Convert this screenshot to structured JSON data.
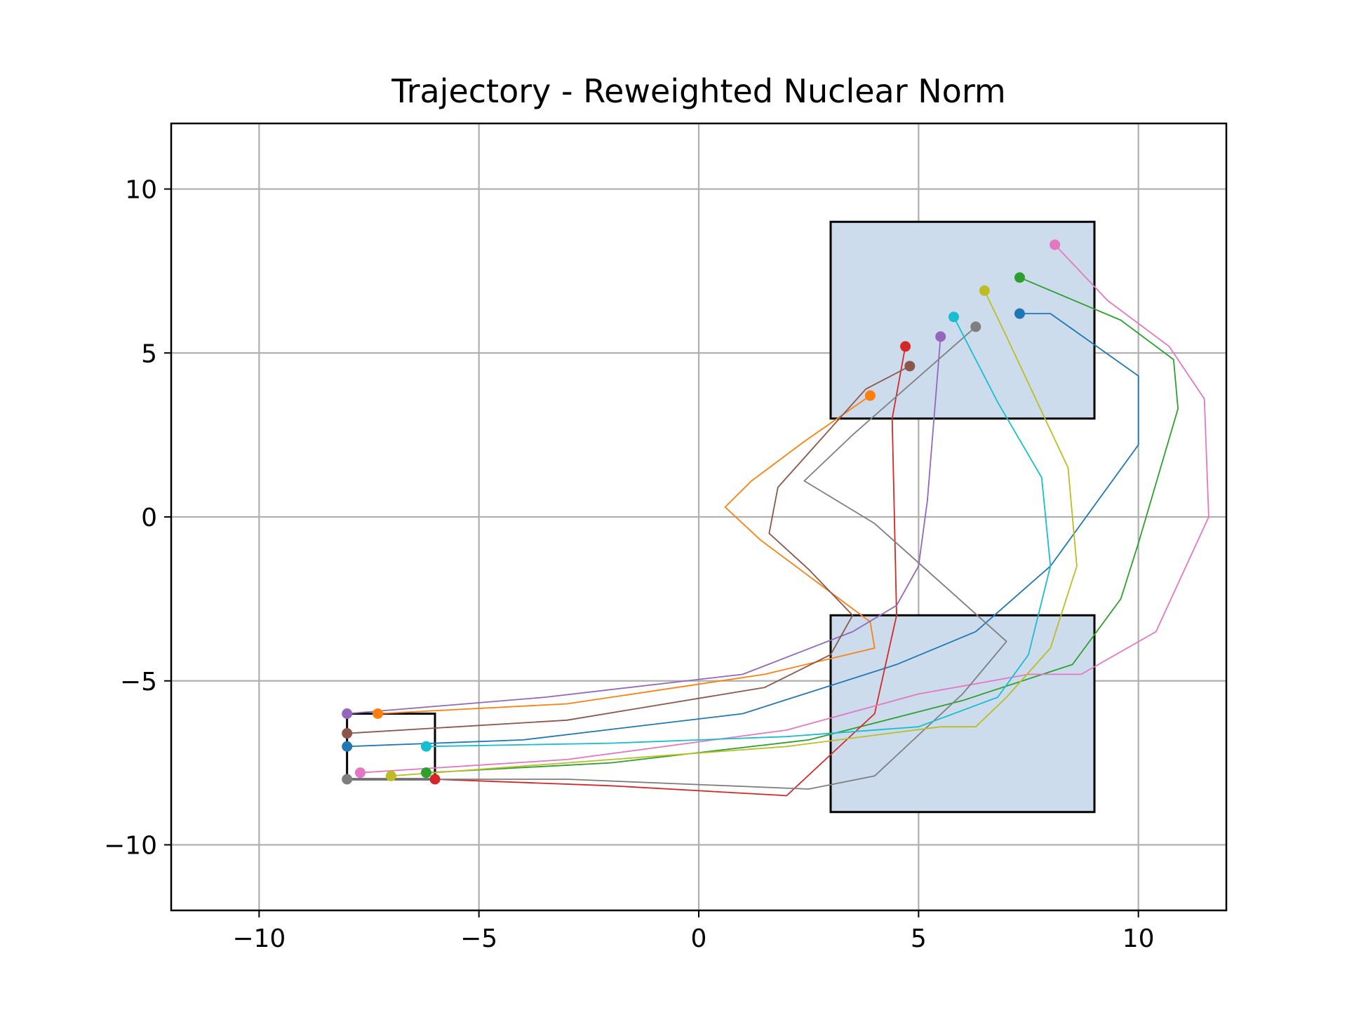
{
  "chart_data": {
    "type": "line",
    "title": "Trajectory - Reweighted Nuclear Norm",
    "xlabel": "",
    "ylabel": "",
    "xlim": [
      -12,
      12
    ],
    "ylim": [
      -12,
      12
    ],
    "xticks": [
      -10,
      -5,
      0,
      5,
      10
    ],
    "yticks": [
      -10,
      -5,
      0,
      5,
      10
    ],
    "xtick_labels": [
      "−10",
      "−5",
      "0",
      "5",
      "10"
    ],
    "ytick_labels": [
      "−10",
      "−5",
      "0",
      "5",
      "10"
    ],
    "grid": true,
    "legend": "none",
    "regions": [
      {
        "name": "start region",
        "x": [
          -8,
          -6
        ],
        "y": [
          -8,
          -6
        ],
        "fill": "none",
        "edge": "#000000"
      },
      {
        "name": "obstacle / waypoint box lower",
        "x": [
          3,
          9
        ],
        "y": [
          -9,
          -3
        ],
        "fill": "#ccdcec",
        "edge": "#000000"
      },
      {
        "name": "goal region",
        "x": [
          3,
          9
        ],
        "y": [
          3,
          9
        ],
        "fill": "#ccdcec",
        "edge": "#000000"
      }
    ],
    "colors": [
      "#1f77b4",
      "#ff7f0e",
      "#2ca02c",
      "#d62728",
      "#9467bd",
      "#8c564b",
      "#e377c2",
      "#7f7f7f",
      "#bcbd22",
      "#17becf"
    ],
    "series": [
      {
        "x": [
          -8.0,
          -4.0,
          1.0,
          4.5,
          6.3,
          8.0,
          10.0,
          10.0,
          8.0,
          7.3
        ],
        "y": [
          -7.0,
          -6.8,
          -6.0,
          -4.5,
          -3.5,
          -1.5,
          2.2,
          4.3,
          6.2,
          6.2
        ]
      },
      {
        "x": [
          -7.3,
          -3.0,
          1.5,
          4.0,
          3.9,
          2.7,
          1.4,
          0.6,
          1.2,
          2.4,
          3.9
        ],
        "y": [
          -6.0,
          -5.7,
          -4.8,
          -4.0,
          -3.2,
          -2.0,
          -0.7,
          0.3,
          1.1,
          2.3,
          3.7
        ]
      },
      {
        "x": [
          -6.2,
          -2.0,
          2.5,
          6.0,
          8.5,
          9.6,
          10.0,
          10.9,
          10.8,
          9.6,
          7.3
        ],
        "y": [
          -7.8,
          -7.5,
          -6.8,
          -5.6,
          -4.5,
          -2.5,
          -0.8,
          3.3,
          4.8,
          6.0,
          7.3
        ]
      },
      {
        "x": [
          -6.0,
          -2.0,
          2.0,
          4.0,
          4.5,
          4.4,
          4.7
        ],
        "y": [
          -8.0,
          -8.2,
          -8.5,
          -6.0,
          -3.0,
          3.0,
          5.2
        ]
      },
      {
        "x": [
          -8.0,
          -3.5,
          1.0,
          3.5,
          4.5,
          5.0,
          5.2,
          5.5
        ],
        "y": [
          -6.0,
          -5.5,
          -4.8,
          -3.5,
          -2.7,
          -1.5,
          0.5,
          5.5
        ]
      },
      {
        "x": [
          -8.0,
          -3.0,
          1.5,
          3.0,
          3.5,
          2.5,
          1.6,
          1.8,
          3.8,
          4.8
        ],
        "y": [
          -6.6,
          -6.2,
          -5.2,
          -4.2,
          -3.0,
          -1.6,
          -0.5,
          0.9,
          3.9,
          4.6
        ]
      },
      {
        "x": [
          -7.7,
          -3.0,
          2.0,
          5.0,
          7.5,
          8.7,
          10.4,
          11.6,
          11.5,
          10.7,
          9.3,
          8.1
        ],
        "y": [
          -7.8,
          -7.4,
          -6.5,
          -5.4,
          -4.8,
          -4.8,
          -3.5,
          0.0,
          3.6,
          5.2,
          6.6,
          8.3
        ]
      },
      {
        "x": [
          -8.0,
          -3.0,
          2.5,
          4.0,
          6.0,
          7.0,
          4.0,
          2.4,
          3.5,
          6.3
        ],
        "y": [
          -8.0,
          -8.0,
          -8.3,
          -7.9,
          -5.4,
          -3.8,
          -0.2,
          1.1,
          2.5,
          5.8
        ]
      },
      {
        "x": [
          -7.0,
          -3.0,
          2.0,
          5.5,
          6.3,
          7.0,
          8.0,
          8.6,
          8.4,
          7.7,
          7.0,
          6.5
        ],
        "y": [
          -7.9,
          -7.5,
          -7.0,
          -6.4,
          -6.4,
          -5.5,
          -4.0,
          -1.5,
          1.5,
          3.5,
          5.5,
          6.9
        ]
      },
      {
        "x": [
          -6.2,
          -2.0,
          2.0,
          5.0,
          6.8,
          7.5,
          8.0,
          7.8,
          6.8,
          5.8
        ],
        "y": [
          -7.0,
          -6.9,
          -6.7,
          -6.4,
          -5.5,
          -4.2,
          -1.5,
          1.2,
          3.5,
          6.1
        ]
      }
    ],
    "start_points": {
      "x": [
        -8.0,
        -7.3,
        -6.2,
        -6.0,
        -8.0,
        -8.0,
        -7.7,
        -8.0,
        -7.0,
        -6.2
      ],
      "y": [
        -7.0,
        -6.0,
        -7.8,
        -8.0,
        -6.0,
        -6.6,
        -7.8,
        -8.0,
        -7.9,
        -7.0
      ]
    },
    "end_points": {
      "x": [
        7.3,
        3.9,
        7.3,
        4.7,
        5.5,
        4.8,
        8.1,
        6.3,
        6.5,
        5.8
      ],
      "y": [
        6.2,
        3.7,
        7.3,
        5.2,
        5.5,
        4.6,
        8.3,
        5.8,
        6.9,
        6.1
      ]
    }
  }
}
